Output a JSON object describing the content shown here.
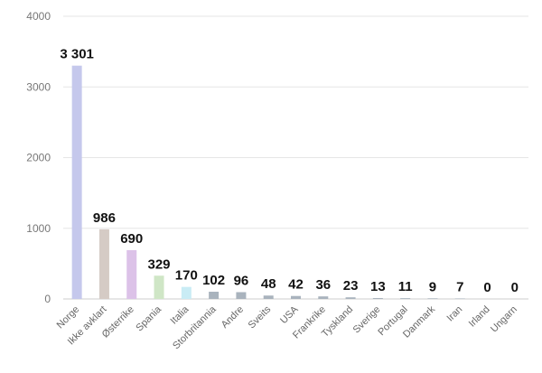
{
  "chart_data": {
    "type": "bar",
    "categories": [
      "Norge",
      "Ikke avklart",
      "Østerrike",
      "Spania",
      "Italia",
      "Storbritannia",
      "Andre",
      "Sveits",
      "USA",
      "Frankrike",
      "Tyskland",
      "Sverige",
      "Portugal",
      "Danmark",
      "Iran",
      "Irland",
      "Ungarn"
    ],
    "values": [
      3301,
      986,
      690,
      329,
      170,
      102,
      96,
      48,
      42,
      36,
      23,
      13,
      11,
      9,
      7,
      0,
      0
    ],
    "data_labels": [
      "3 301",
      "986",
      "690",
      "329",
      "170",
      "102",
      "96",
      "48",
      "42",
      "36",
      "23",
      "13",
      "11",
      "9",
      "7",
      "0",
      "0"
    ],
    "colors": [
      "#c5c8ec",
      "#d5cbc5",
      "#dcc2e8",
      "#cfe6c6",
      "#c9ecf5",
      "#a9b3bd",
      "#a9b3bd",
      "#a9b3bd",
      "#a9b3bd",
      "#a9b3bd",
      "#a9b3bd",
      "#a9b3bd",
      "#a9b3bd",
      "#a9b3bd",
      "#a9b3bd",
      "#a9b3bd",
      "#a9b3bd"
    ],
    "ylim": [
      0,
      4000
    ],
    "yticks": [
      0,
      1000,
      2000,
      3000,
      4000
    ],
    "ytick_labels": [
      "0",
      "1000",
      "2000",
      "3000",
      "4000"
    ],
    "grid": true,
    "legend": false,
    "title": "",
    "xlabel": "",
    "ylabel": ""
  }
}
